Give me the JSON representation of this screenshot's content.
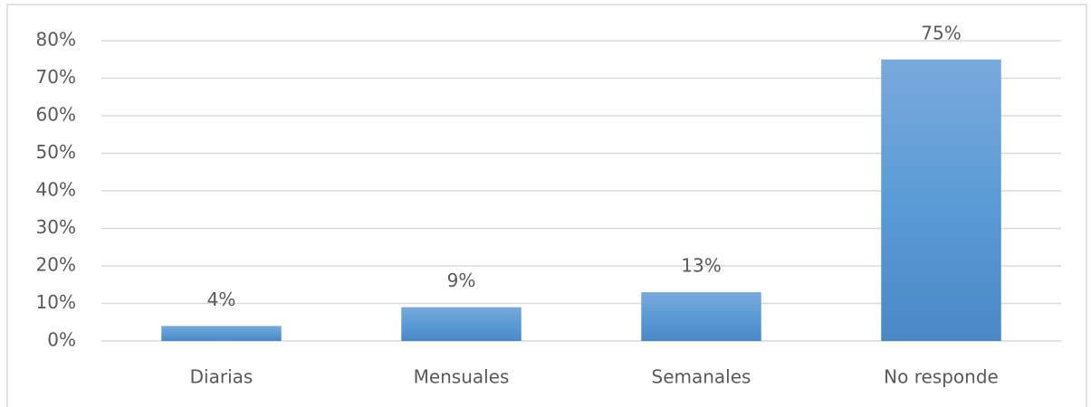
{
  "chart_data": {
    "type": "bar",
    "categories": [
      "Diarias",
      "Mensuales",
      "Semanales",
      "No responde"
    ],
    "values": [
      4,
      9,
      13,
      75
    ],
    "value_labels": [
      "4%",
      "9%",
      "13%",
      "75%"
    ],
    "color": "#5b9bd5",
    "ylim": [
      0,
      80
    ],
    "yticks": [
      {
        "value": 0,
        "label": "0%"
      },
      {
        "value": 10,
        "label": "10%"
      },
      {
        "value": 20,
        "label": "20%"
      },
      {
        "value": 30,
        "label": "30%"
      },
      {
        "value": 40,
        "label": "40%"
      },
      {
        "value": 50,
        "label": "50%"
      },
      {
        "value": 60,
        "label": "60%"
      },
      {
        "value": 70,
        "label": "70%"
      },
      {
        "value": 80,
        "label": "80%"
      }
    ],
    "grid": true
  }
}
